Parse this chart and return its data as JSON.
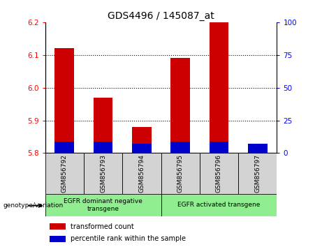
{
  "title": "GDS4496 / 145087_at",
  "samples": [
    "GSM856792",
    "GSM856793",
    "GSM856794",
    "GSM856795",
    "GSM856796",
    "GSM856797"
  ],
  "red_values": [
    6.12,
    5.97,
    5.88,
    6.09,
    6.2,
    5.82
  ],
  "blue_values": [
    5.835,
    5.835,
    5.828,
    5.835,
    5.835,
    5.828
  ],
  "base": 5.8,
  "ylim_left": [
    5.8,
    6.2
  ],
  "ylim_right": [
    0,
    100
  ],
  "left_ticks": [
    5.8,
    5.9,
    6.0,
    6.1,
    6.2
  ],
  "right_ticks": [
    0,
    25,
    50,
    75,
    100
  ],
  "red_color": "#cc0000",
  "blue_color": "#0000cc",
  "bar_width": 0.5,
  "group1_label": "EGFR dominant negative\ntransgene",
  "group2_label": "EGFR activated transgene",
  "genotype_label": "genotype/variation",
  "legend_red": "transformed count",
  "legend_blue": "percentile rank within the sample",
  "bg_color_group": "#90ee90",
  "bg_color_bar": "#d3d3d3"
}
